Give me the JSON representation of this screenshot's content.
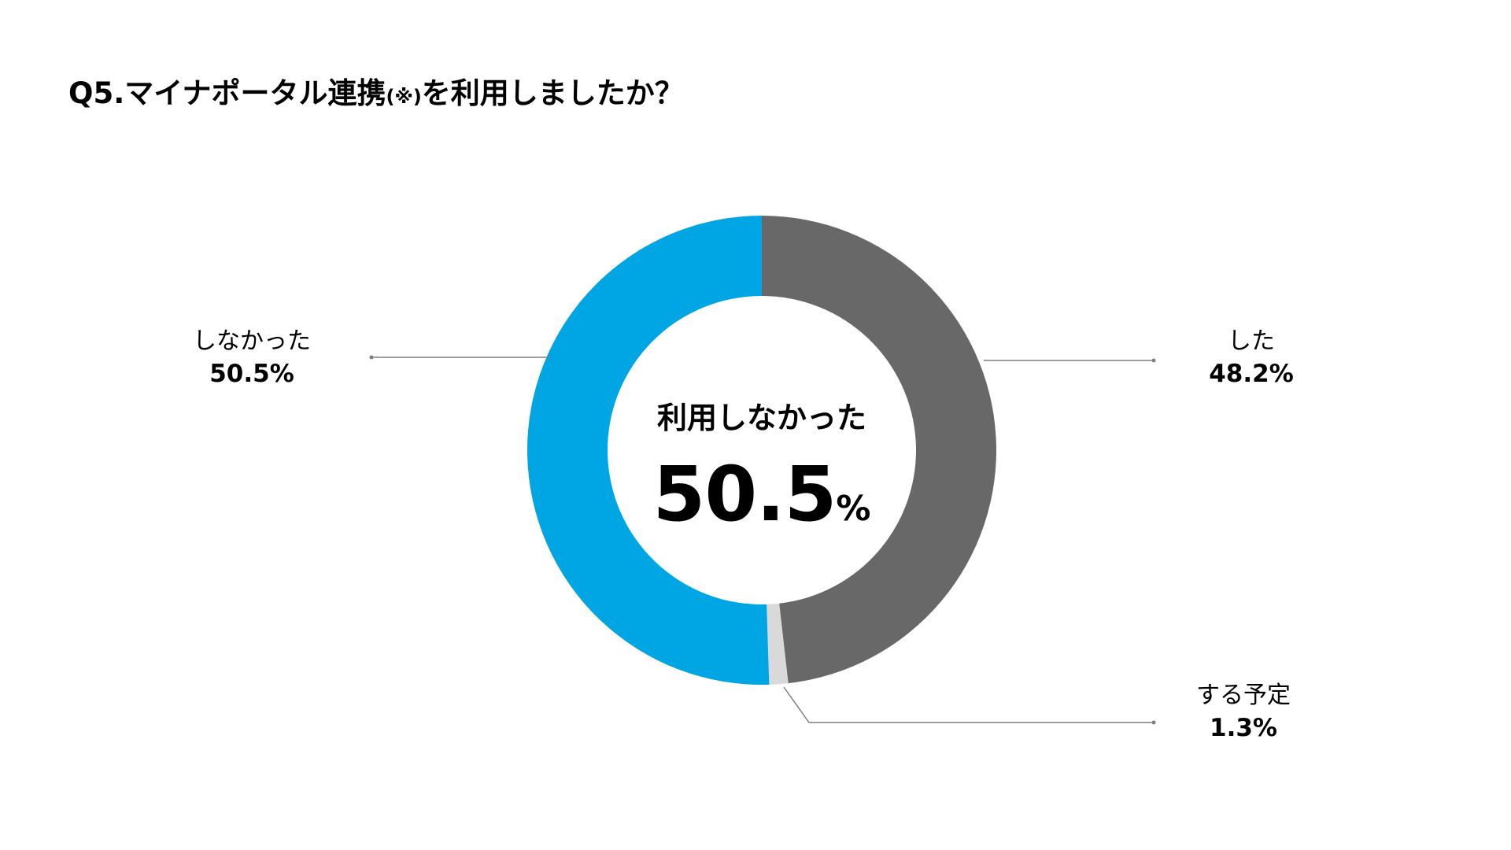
{
  "title": {
    "main_before": "Q5.マイナポータル連携",
    "note": "(※)",
    "main_after": "を利用しましたか？"
  },
  "center": {
    "label": "利用しなかった",
    "value": "50.5",
    "unit": "%"
  },
  "chart_data": {
    "type": "pie",
    "donut": true,
    "title": "Q5.マイナポータル連携(※)を利用しましたか？",
    "series": [
      {
        "name": "した",
        "value": 48.2,
        "label": "48.2%",
        "color": "#686868"
      },
      {
        "name": "する予定",
        "value": 1.3,
        "label": "1.3%",
        "color": "#d9d9d9"
      },
      {
        "name": "しなかった",
        "value": 50.5,
        "label": "50.5%",
        "color": "#00a6e3"
      }
    ],
    "start": "top",
    "direction": "clockwise",
    "legend": "none"
  }
}
